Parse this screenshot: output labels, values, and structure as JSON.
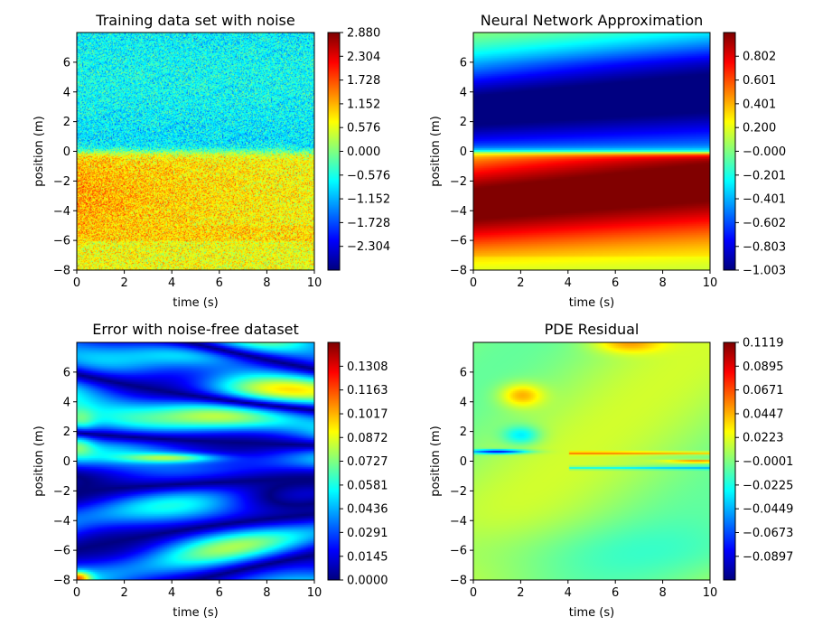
{
  "chart_data": [
    {
      "type": "heatmap",
      "title": "Training data set with noise",
      "xlabel": "time (s)",
      "ylabel": "position (m)",
      "xlim": [
        0,
        10
      ],
      "ylim": [
        -8,
        8
      ],
      "xticks": [
        "0",
        "2",
        "4",
        "6",
        "8",
        "10"
      ],
      "yticks": [
        "−8",
        "−6",
        "−4",
        "−2",
        "0",
        "2",
        "4",
        "6"
      ],
      "colormap": "jet",
      "colorbar_range": [
        -2.88,
        2.88
      ],
      "colorbar_ticks": [
        "2.880",
        "2.304",
        "1.728",
        "1.152",
        "0.576",
        "0.000",
        "−0.576",
        "−1.152",
        "−1.728",
        "−2.304"
      ],
      "colorbar_values": [
        2.88,
        2.304,
        1.728,
        1.152,
        0.576,
        0.0,
        -0.576,
        -1.152,
        -1.728,
        -2.304
      ]
    },
    {
      "type": "heatmap",
      "title": "Neural Network Approximation",
      "xlabel": "time (s)",
      "ylabel": "position (m)",
      "xlim": [
        0,
        10
      ],
      "ylim": [
        -8,
        8
      ],
      "xticks": [
        "0",
        "2",
        "4",
        "6",
        "8",
        "10"
      ],
      "yticks": [
        "−8",
        "−6",
        "−4",
        "−2",
        "0",
        "2",
        "4",
        "6"
      ],
      "colormap": "jet",
      "colorbar_range": [
        -1.003,
        1.002
      ],
      "colorbar_ticks": [
        "0.802",
        "0.601",
        "0.401",
        "0.200",
        "−0.000",
        "−0.201",
        "−0.401",
        "−0.602",
        "−0.803",
        "−1.003"
      ],
      "colorbar_values": [
        0.802,
        0.601,
        0.401,
        0.2,
        0.0,
        -0.201,
        -0.401,
        -0.602,
        -0.803,
        -1.003
      ]
    },
    {
      "type": "heatmap",
      "title": "Error with noise-free dataset",
      "xlabel": "time (s)",
      "ylabel": "position (m)",
      "xlim": [
        0,
        10
      ],
      "ylim": [
        -8,
        8
      ],
      "xticks": [
        "0",
        "2",
        "4",
        "6",
        "8",
        "10"
      ],
      "yticks": [
        "−8",
        "−6",
        "−4",
        "−2",
        "0",
        "2",
        "4",
        "6"
      ],
      "colormap": "jet",
      "colorbar_range": [
        0.0,
        0.1454
      ],
      "colorbar_ticks": [
        "0.1308",
        "0.1163",
        "0.1017",
        "0.0872",
        "0.0727",
        "0.0581",
        "0.0436",
        "0.0291",
        "0.0145",
        "0.0000"
      ],
      "colorbar_values": [
        0.1308,
        0.1163,
        0.1017,
        0.0872,
        0.0727,
        0.0581,
        0.0436,
        0.0291,
        0.0145,
        0.0
      ]
    },
    {
      "type": "heatmap",
      "title": "PDE Residual",
      "xlabel": "time (s)",
      "ylabel": "position (m)",
      "xlim": [
        0,
        10
      ],
      "ylim": [
        -8,
        8
      ],
      "xticks": [
        "0",
        "2",
        "4",
        "6",
        "8",
        "10"
      ],
      "yticks": [
        "−8",
        "−6",
        "−4",
        "−2",
        "0",
        "2",
        "4",
        "6"
      ],
      "colormap": "jet",
      "colorbar_range": [
        -0.112,
        0.1119
      ],
      "colorbar_ticks": [
        "0.1119",
        "0.0895",
        "0.0671",
        "0.0447",
        "0.0223",
        "−0.0001",
        "−0.0225",
        "−0.0449",
        "−0.0673",
        "−0.0897"
      ],
      "colorbar_values": [
        0.1119,
        0.0895,
        0.0671,
        0.0447,
        0.0223,
        -0.0001,
        -0.0225,
        -0.0449,
        -0.0673,
        -0.0897
      ]
    }
  ]
}
